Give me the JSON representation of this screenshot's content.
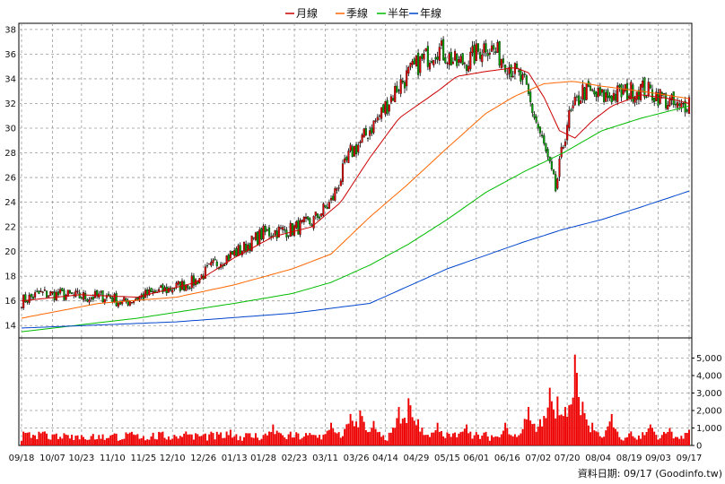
{
  "chart_data": {
    "type": "candlestick",
    "legend": [
      {
        "label": "月線",
        "color": "#cc0000"
      },
      {
        "label": "季線",
        "color": "#ff6600"
      },
      {
        "label": "半年",
        "color": "#00bb00"
      },
      {
        "label": "年線",
        "color": "#0044cc"
      }
    ],
    "x_labels": [
      "09/18",
      "10/07",
      "10/23",
      "11/10",
      "11/25",
      "12/10",
      "12/26",
      "01/13",
      "01/28",
      "02/23",
      "03/11",
      "03/26",
      "04/14",
      "04/29",
      "05/15",
      "06/01",
      "06/16",
      "07/02",
      "07/20",
      "08/04",
      "08/19",
      "09/03",
      "09/17"
    ],
    "price_axis": {
      "ticks": [
        "14",
        "16",
        "18",
        "20",
        "22",
        "24",
        "26",
        "28",
        "30",
        "32",
        "34",
        "36",
        "38"
      ],
      "ylim": [
        13,
        38.5
      ]
    },
    "volume_axis": {
      "ticks": [
        "0",
        "1,000",
        "2,000",
        "3,000",
        "4,000",
        "5,000"
      ],
      "ylim": [
        0,
        6000
      ]
    },
    "footer": "資料日期: 09/17  (Goodinfo.tw)",
    "close_anchors": [
      [
        0,
        16.0
      ],
      [
        10,
        16.6
      ],
      [
        20,
        16.5
      ],
      [
        35,
        16.3
      ],
      [
        45,
        16.4
      ],
      [
        52,
        15.8
      ],
      [
        60,
        16.3
      ],
      [
        75,
        16.9
      ],
      [
        90,
        17.6
      ],
      [
        100,
        19.0
      ],
      [
        115,
        20.3
      ],
      [
        125,
        21.5
      ],
      [
        140,
        21.8
      ],
      [
        150,
        22.4
      ],
      [
        160,
        24.0
      ],
      [
        170,
        28.0
      ],
      [
        175,
        28.8
      ],
      [
        185,
        31.0
      ],
      [
        195,
        33.5
      ],
      [
        205,
        35.2
      ],
      [
        215,
        36.5
      ],
      [
        225,
        35.2
      ],
      [
        232,
        35.6
      ],
      [
        240,
        36.8
      ],
      [
        250,
        35.5
      ],
      [
        260,
        33.5
      ],
      [
        265,
        31.0
      ],
      [
        270,
        28.5
      ],
      [
        276,
        25.0
      ],
      [
        282,
        30.5
      ],
      [
        290,
        33.0
      ],
      [
        300,
        32.5
      ],
      [
        310,
        32.8
      ],
      [
        320,
        33.2
      ],
      [
        330,
        32.6
      ],
      [
        340,
        31.5
      ],
      [
        345,
        32.3
      ]
    ],
    "moving_averages": {
      "month": [
        [
          0,
          16.0
        ],
        [
          30,
          16.5
        ],
        [
          60,
          16.3
        ],
        [
          90,
          17.5
        ],
        [
          110,
          19.5
        ],
        [
          130,
          21.2
        ],
        [
          150,
          22.0
        ],
        [
          165,
          24.0
        ],
        [
          180,
          27.6
        ],
        [
          195,
          30.8
        ],
        [
          215,
          33.0
        ],
        [
          225,
          34.2
        ],
        [
          240,
          34.6
        ],
        [
          255,
          34.9
        ],
        [
          262,
          34.5
        ],
        [
          270,
          32.5
        ],
        [
          278,
          29.8
        ],
        [
          286,
          29.2
        ],
        [
          295,
          30.6
        ],
        [
          305,
          31.8
        ],
        [
          320,
          32.7
        ],
        [
          335,
          32.4
        ],
        [
          345,
          32.0
        ]
      ],
      "quarter": [
        [
          0,
          14.6
        ],
        [
          40,
          15.8
        ],
        [
          80,
          16.3
        ],
        [
          110,
          17.3
        ],
        [
          140,
          18.6
        ],
        [
          160,
          19.8
        ],
        [
          180,
          22.8
        ],
        [
          200,
          25.5
        ],
        [
          220,
          28.4
        ],
        [
          240,
          31.2
        ],
        [
          255,
          32.6
        ],
        [
          270,
          33.6
        ],
        [
          285,
          33.8
        ],
        [
          300,
          33.4
        ],
        [
          320,
          33.0
        ],
        [
          345,
          32.4
        ]
      ],
      "half_year": [
        [
          0,
          13.5
        ],
        [
          60,
          14.6
        ],
        [
          110,
          15.8
        ],
        [
          140,
          16.6
        ],
        [
          160,
          17.5
        ],
        [
          180,
          18.9
        ],
        [
          200,
          20.6
        ],
        [
          220,
          22.6
        ],
        [
          240,
          24.8
        ],
        [
          260,
          26.5
        ],
        [
          280,
          28.0
        ],
        [
          300,
          29.8
        ],
        [
          320,
          30.8
        ],
        [
          345,
          31.8
        ]
      ],
      "year": [
        [
          0,
          13.8
        ],
        [
          80,
          14.3
        ],
        [
          140,
          15.0
        ],
        [
          180,
          15.8
        ],
        [
          200,
          17.2
        ],
        [
          220,
          18.6
        ],
        [
          240,
          19.7
        ],
        [
          260,
          20.8
        ],
        [
          280,
          21.8
        ],
        [
          300,
          22.6
        ],
        [
          320,
          23.6
        ],
        [
          345,
          24.9
        ]
      ]
    },
    "volume_spikes": [
      [
        12,
        800
      ],
      [
        22,
        700
      ],
      [
        40,
        600
      ],
      [
        60,
        650
      ],
      [
        85,
        800
      ],
      [
        108,
        900
      ],
      [
        130,
        1200
      ],
      [
        160,
        1300
      ],
      [
        170,
        1800
      ],
      [
        175,
        2000
      ],
      [
        182,
        1400
      ],
      [
        195,
        2200
      ],
      [
        200,
        2700
      ],
      [
        205,
        1500
      ],
      [
        215,
        1300
      ],
      [
        230,
        1200
      ],
      [
        250,
        1300
      ],
      [
        262,
        2200
      ],
      [
        268,
        1500
      ],
      [
        273,
        3300
      ],
      [
        277,
        2800
      ],
      [
        281,
        2200
      ],
      [
        286,
        5200
      ],
      [
        290,
        2500
      ],
      [
        295,
        1300
      ],
      [
        305,
        1800
      ],
      [
        315,
        800
      ],
      [
        325,
        1200
      ],
      [
        335,
        1000
      ],
      [
        345,
        900
      ]
    ]
  }
}
